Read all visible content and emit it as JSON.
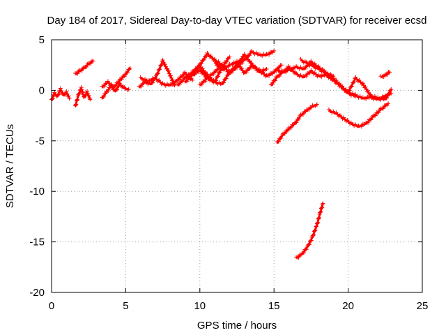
{
  "chart_data": {
    "type": "scatter",
    "title": "Day 184 of 2017, Sidereal Day-to-day VTEC variation (SDTVAR) for receiver ecsd",
    "xlabel": "GPS time / hours",
    "ylabel": "SDTVAR / TECUs",
    "xlim": [
      0,
      25
    ],
    "ylim": [
      -20,
      5
    ],
    "xticks": [
      0,
      5,
      10,
      15,
      20,
      25
    ],
    "yticks": [
      -20,
      -15,
      -10,
      -5,
      0,
      5
    ],
    "grid": true,
    "marker": "plus",
    "series": [
      {
        "name": "seg-early-1",
        "x": [
          0.0,
          0.2,
          0.4,
          0.6,
          0.8,
          1.0,
          1.2
        ],
        "y": [
          -1.0,
          -0.3,
          -0.6,
          0.1,
          -0.5,
          -0.2,
          -0.8
        ]
      },
      {
        "name": "seg-early-2",
        "x": [
          1.6,
          1.8,
          2.0,
          2.2,
          2.4,
          2.6
        ],
        "y": [
          -1.6,
          -0.5,
          0.2,
          -0.7,
          -0.2,
          -0.9
        ]
      },
      {
        "name": "seg-early-3",
        "x": [
          1.6,
          1.9,
          2.2,
          2.5,
          2.8
        ],
        "y": [
          1.6,
          1.9,
          2.2,
          2.6,
          2.9
        ]
      },
      {
        "name": "seg-early-4",
        "x": [
          3.4,
          3.7,
          4.0,
          4.3,
          4.6,
          4.9,
          5.2
        ],
        "y": [
          -0.8,
          -0.2,
          0.4,
          -0.1,
          0.6,
          0.2,
          0.1
        ]
      },
      {
        "name": "seg-early-5",
        "x": [
          3.4,
          3.8,
          4.2,
          4.6,
          5.0,
          5.3
        ],
        "y": [
          0.3,
          0.8,
          0.3,
          1.0,
          1.6,
          2.2
        ]
      },
      {
        "name": "seg-mid-1",
        "x": [
          5.9,
          6.3,
          6.7,
          7.1,
          7.5,
          7.9,
          8.3
        ],
        "y": [
          0.3,
          0.8,
          0.6,
          1.5,
          2.9,
          1.8,
          0.5
        ]
      },
      {
        "name": "seg-mid-2",
        "x": [
          6.0,
          6.5,
          7.0,
          7.5,
          8.0,
          8.5,
          9.0,
          9.5
        ],
        "y": [
          1.2,
          0.9,
          1.2,
          0.6,
          0.5,
          1.0,
          1.7,
          1.0
        ]
      },
      {
        "name": "seg-mid-3",
        "x": [
          8.5,
          9.0,
          9.5,
          10.0,
          10.5,
          11.0,
          11.5
        ],
        "y": [
          0.5,
          1.2,
          1.8,
          2.5,
          3.6,
          3.0,
          2.5
        ]
      },
      {
        "name": "seg-mid-4",
        "x": [
          9.0,
          9.5,
          10.0,
          10.5,
          11.0,
          11.5,
          12.0
        ],
        "y": [
          0.8,
          1.5,
          2.4,
          1.5,
          0.8,
          2.3,
          3.3
        ]
      },
      {
        "name": "seg-mid-5",
        "x": [
          9.5,
          10.0,
          10.5,
          11.0,
          11.5,
          12.0,
          12.5,
          13.0,
          13.5,
          14.0,
          14.5,
          15.0
        ],
        "y": [
          1.5,
          2.0,
          1.2,
          1.8,
          2.5,
          1.7,
          2.3,
          3.0,
          3.8,
          3.5,
          3.5,
          3.9
        ]
      },
      {
        "name": "seg-mid-6",
        "x": [
          10.0,
          10.5,
          11.0,
          11.5,
          12.0,
          12.5,
          13.0,
          13.5,
          14.0,
          14.5
        ],
        "y": [
          0.5,
          1.2,
          0.8,
          0.6,
          1.8,
          2.5,
          3.5,
          2.6,
          1.8,
          2.1
        ]
      },
      {
        "name": "seg-mid-7",
        "x": [
          11.0,
          11.5,
          12.0,
          12.5,
          13.0,
          13.5,
          14.0,
          14.5,
          15.0,
          15.5
        ],
        "y": [
          2.8,
          2.0,
          2.5,
          2.8,
          1.7,
          2.4,
          2.0,
          1.4,
          1.8,
          2.5
        ]
      },
      {
        "name": "seg-late-1",
        "x": [
          14.8,
          15.2,
          15.6,
          16.0,
          16.5,
          17.0,
          17.5,
          18.0,
          18.5,
          19.0
        ],
        "y": [
          0.5,
          1.3,
          1.8,
          2.0,
          2.3,
          2.1,
          2.8,
          2.3,
          1.7,
          1.4
        ]
      },
      {
        "name": "seg-late-2",
        "x": [
          15.2,
          15.6,
          16.0,
          16.5,
          17.0,
          17.5,
          18.0,
          18.5,
          19.0,
          19.5,
          20.0,
          20.5
        ],
        "y": [
          2.0,
          1.8,
          2.3,
          1.6,
          1.3,
          1.9,
          1.4,
          1.5,
          1.0,
          0.4,
          -0.3,
          -0.6
        ]
      },
      {
        "name": "seg-late-3",
        "x": [
          16.8,
          17.2,
          17.6,
          18.0,
          18.4,
          18.8,
          19.2,
          19.6,
          20.0,
          20.5,
          21.0,
          21.5,
          22.0,
          22.5,
          22.9
        ],
        "y": [
          3.0,
          2.7,
          2.4,
          2.1,
          1.8,
          1.4,
          0.9,
          0.3,
          -0.2,
          -0.5,
          -0.8,
          -0.7,
          -0.9,
          -0.6,
          -0.3
        ]
      },
      {
        "name": "seg-late-4",
        "x": [
          20.0,
          20.5,
          21.0,
          21.5,
          22.0,
          22.5,
          22.9
        ],
        "y": [
          -0.2,
          1.2,
          0.6,
          -0.5,
          -0.8,
          -0.9,
          0.1
        ]
      },
      {
        "name": "seg-late-5",
        "x": [
          22.2,
          22.5,
          22.8
        ],
        "y": [
          1.3,
          1.5,
          1.8
        ]
      },
      {
        "name": "seg-neg-1",
        "x": [
          15.2,
          15.6,
          16.0,
          16.4,
          16.8,
          17.2,
          17.6,
          17.9
        ],
        "y": [
          -5.2,
          -4.4,
          -3.8,
          -3.3,
          -2.5,
          -2.0,
          -1.6,
          -1.4
        ]
      },
      {
        "name": "seg-neg-2",
        "x": [
          18.7,
          19.2,
          19.7,
          20.2,
          20.7,
          21.2,
          21.7,
          22.2,
          22.7
        ],
        "y": [
          -2.0,
          -2.3,
          -2.8,
          -3.3,
          -3.6,
          -3.3,
          -2.6,
          -1.9,
          -1.3
        ]
      },
      {
        "name": "seg-neg-3",
        "x": [
          16.5,
          16.9,
          17.3,
          17.6,
          17.9,
          18.1,
          18.3
        ],
        "y": [
          -16.6,
          -16.2,
          -15.4,
          -14.5,
          -13.3,
          -12.2,
          -11.2
        ]
      }
    ]
  }
}
